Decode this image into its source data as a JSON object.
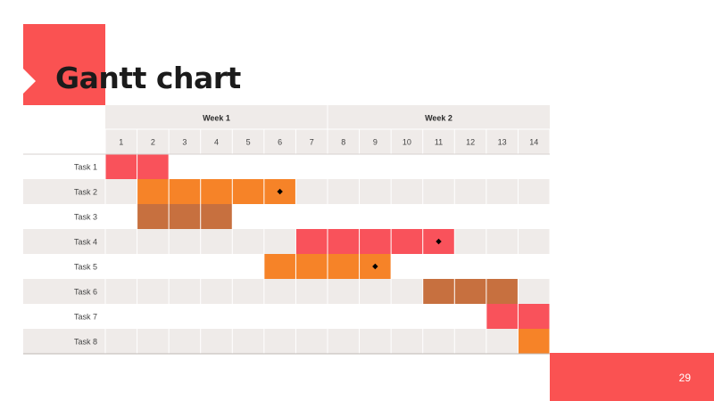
{
  "title": "Gantt chart",
  "page_number": "29",
  "colors": {
    "accent": "#fa5252",
    "band": "#efebe9",
    "task_red": "#f9525b",
    "task_orange": "#f68328",
    "task_brown": "#c7703f",
    "milestone": "#000000"
  },
  "chart_data": {
    "type": "gantt",
    "weeks": [
      {
        "label": "Week 1",
        "days": [
          1,
          7
        ]
      },
      {
        "label": "Week 2",
        "days": [
          8,
          14
        ]
      }
    ],
    "days": [
      "1",
      "2",
      "3",
      "4",
      "5",
      "6",
      "7",
      "8",
      "9",
      "10",
      "11",
      "12",
      "13",
      "14"
    ],
    "tasks": [
      {
        "name": "Task 1",
        "start": 1,
        "end": 2,
        "color": "task_red",
        "milestone": null
      },
      {
        "name": "Task 2",
        "start": 2,
        "end": 6,
        "color": "task_orange",
        "milestone": 6
      },
      {
        "name": "Task 3",
        "start": 2,
        "end": 4,
        "color": "task_brown",
        "milestone": null
      },
      {
        "name": "Task 4",
        "start": 7,
        "end": 11,
        "color": "task_red",
        "milestone": 11
      },
      {
        "name": "Task 5",
        "start": 6,
        "end": 9,
        "color": "task_orange",
        "milestone": 9
      },
      {
        "name": "Task 6",
        "start": 11,
        "end": 13,
        "color": "task_brown",
        "milestone": null
      },
      {
        "name": "Task 7",
        "start": 13,
        "end": 14,
        "color": "task_red",
        "milestone": null
      },
      {
        "name": "Task 8",
        "start": 14,
        "end": 14,
        "color": "task_orange",
        "milestone": null
      }
    ]
  }
}
